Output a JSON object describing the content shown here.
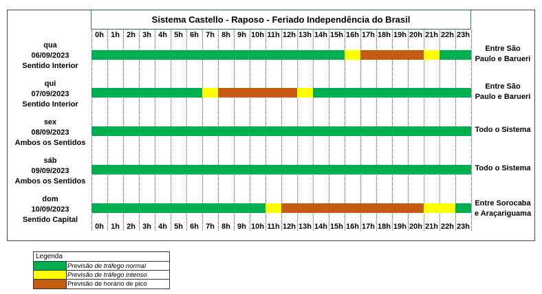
{
  "title": "Sistema Castello - Raposo - Feriado Independência do Brasil",
  "hours": [
    "0h",
    "1h",
    "2h",
    "3h",
    "4h",
    "5h",
    "6h",
    "7h",
    "8h",
    "9h",
    "10h",
    "11h",
    "12h",
    "13h",
    "14h",
    "15h",
    "16h",
    "17h",
    "18h",
    "19h",
    "20h",
    "21h",
    "22h",
    "23h"
  ],
  "colors": {
    "normal": "#00b050",
    "intenso": "#ffff00",
    "pico": "#c55a11"
  },
  "days": [
    {
      "weekday": "qua",
      "date": "06/09/2023",
      "direction": "Sentido Interior",
      "region": "Entre São Paulo e Barueri",
      "region_lines": [
        "Entre São",
        "Paulo e Barueri"
      ],
      "levels": [
        "normal",
        "normal",
        "normal",
        "normal",
        "normal",
        "normal",
        "normal",
        "normal",
        "normal",
        "normal",
        "normal",
        "normal",
        "normal",
        "normal",
        "normal",
        "normal",
        "intenso",
        "pico",
        "pico",
        "pico",
        "pico",
        "intenso",
        "normal",
        "normal"
      ]
    },
    {
      "weekday": "qui",
      "date": "07/09/2023",
      "direction": "Sentido Interior",
      "region": "Entre São Paulo e Barueri",
      "region_lines": [
        "Entre São",
        "Paulo e Barueri"
      ],
      "levels": [
        "normal",
        "normal",
        "normal",
        "normal",
        "normal",
        "normal",
        "normal",
        "intenso",
        "pico",
        "pico",
        "pico",
        "pico",
        "pico",
        "intenso",
        "normal",
        "normal",
        "normal",
        "normal",
        "normal",
        "normal",
        "normal",
        "normal",
        "normal",
        "normal"
      ]
    },
    {
      "weekday": "sex",
      "date": "08/09/2023",
      "direction": "Ambos os Sentidos",
      "region": "Todo o Sistema",
      "region_lines": [
        "Todo o Sistema"
      ],
      "levels": [
        "normal",
        "normal",
        "normal",
        "normal",
        "normal",
        "normal",
        "normal",
        "normal",
        "normal",
        "normal",
        "normal",
        "normal",
        "normal",
        "normal",
        "normal",
        "normal",
        "normal",
        "normal",
        "normal",
        "normal",
        "normal",
        "normal",
        "normal",
        "normal"
      ]
    },
    {
      "weekday": "sáb",
      "date": "09/09/2023",
      "direction": "Ambos os Sentidos",
      "region": "Todo o Sistema",
      "region_lines": [
        "Todo o Sistema"
      ],
      "levels": [
        "normal",
        "normal",
        "normal",
        "normal",
        "normal",
        "normal",
        "normal",
        "normal",
        "normal",
        "normal",
        "normal",
        "normal",
        "normal",
        "normal",
        "normal",
        "normal",
        "normal",
        "normal",
        "normal",
        "normal",
        "normal",
        "normal",
        "normal",
        "normal"
      ]
    },
    {
      "weekday": "dom",
      "date": "10/09/2023",
      "direction": "Sentido Capital",
      "region": "Entre Sorocaba e Araçariguama",
      "region_lines": [
        "Entre Sorocaba",
        "e Araçariguama"
      ],
      "levels": [
        "normal",
        "normal",
        "normal",
        "normal",
        "normal",
        "normal",
        "normal",
        "normal",
        "normal",
        "normal",
        "normal",
        "intenso",
        "pico",
        "pico",
        "pico",
        "pico",
        "pico",
        "pico",
        "pico",
        "pico",
        "pico",
        "intenso",
        "intenso",
        "normal"
      ]
    }
  ],
  "legend": {
    "title": "Legenda",
    "items": [
      {
        "key": "normal",
        "label": "Previsão de tráfego normal"
      },
      {
        "key": "intenso",
        "label": "Previsão de tráfego intenso"
      },
      {
        "key": "pico",
        "label": "Previsão de horário de pico"
      }
    ]
  }
}
